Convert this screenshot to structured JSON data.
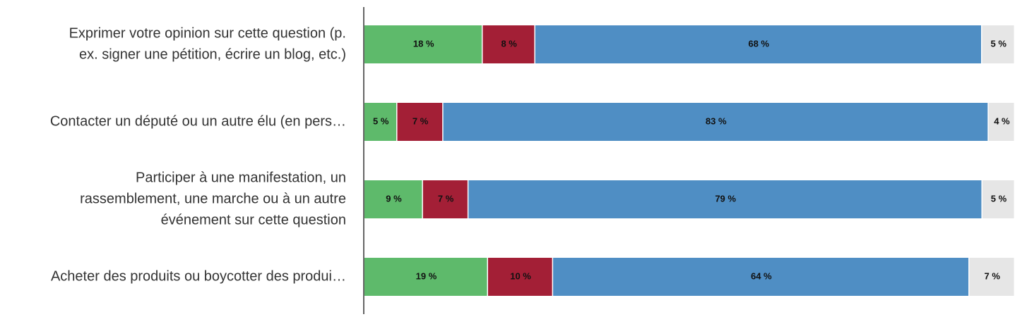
{
  "chart_data": {
    "type": "bar",
    "orientation": "horizontal",
    "stacked": true,
    "legend": "none",
    "grid": false,
    "categories": [
      [
        "Exprimer votre opinion sur cette question (p.",
        "ex. signer une pétition, écrire un blog, etc.)"
      ],
      [
        "Contacter un député ou un autre élu (en pers…"
      ],
      [
        "Participer à une manifestation, un",
        "rassemblement, une marche ou à un autre",
        "événement sur cette question"
      ],
      [
        "Acheter des produits ou boycotter des produi…"
      ]
    ],
    "series": [
      {
        "color": "#5eba6b",
        "values": [
          18,
          5,
          9,
          19
        ],
        "labels": [
          "18 %",
          "5 %",
          "9 %",
          "19 %"
        ]
      },
      {
        "color": "#a31f36",
        "values": [
          8,
          7,
          7,
          10
        ],
        "labels": [
          "8 %",
          "7 %",
          "7 %",
          "10 %"
        ]
      },
      {
        "color": "#4f8ec4",
        "values": [
          68,
          83,
          79,
          64
        ],
        "labels": [
          "68 %",
          "83 %",
          "79 %",
          "64 %"
        ]
      },
      {
        "color": "#e6e6e6",
        "values": [
          5,
          4,
          5,
          7
        ],
        "labels": [
          "5 %",
          "4 %",
          "5 %",
          "7 %"
        ]
      }
    ]
  }
}
